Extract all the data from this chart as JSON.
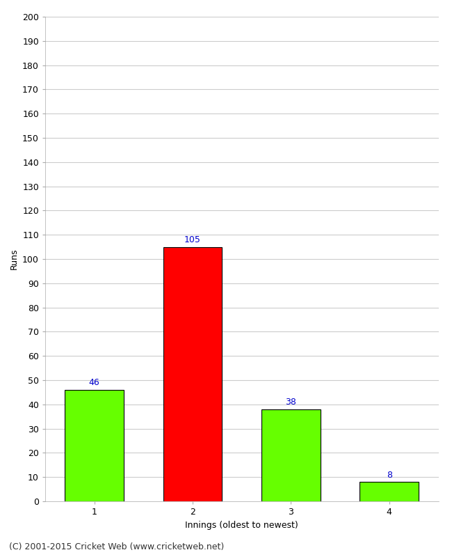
{
  "categories": [
    "1",
    "2",
    "3",
    "4"
  ],
  "values": [
    46,
    105,
    38,
    8
  ],
  "bar_colors": [
    "#66ff00",
    "#ff0000",
    "#66ff00",
    "#66ff00"
  ],
  "bar_edgecolors": [
    "#000000",
    "#000000",
    "#000000",
    "#000000"
  ],
  "xlabel": "Innings (oldest to newest)",
  "ylabel": "Runs",
  "ylim": [
    0,
    200
  ],
  "yticks": [
    0,
    10,
    20,
    30,
    40,
    50,
    60,
    70,
    80,
    90,
    100,
    110,
    120,
    130,
    140,
    150,
    160,
    170,
    180,
    190,
    200
  ],
  "label_color": "#0000cc",
  "label_fontsize": 9,
  "axis_label_fontsize": 9,
  "tick_fontsize": 9,
  "footer_text": "(C) 2001-2015 Cricket Web (www.cricketweb.net)",
  "footer_fontsize": 9,
  "background_color": "#ffffff",
  "grid_color": "#cccccc",
  "bar_width": 0.6,
  "xlim_left": -0.5,
  "xlim_right": 3.5
}
